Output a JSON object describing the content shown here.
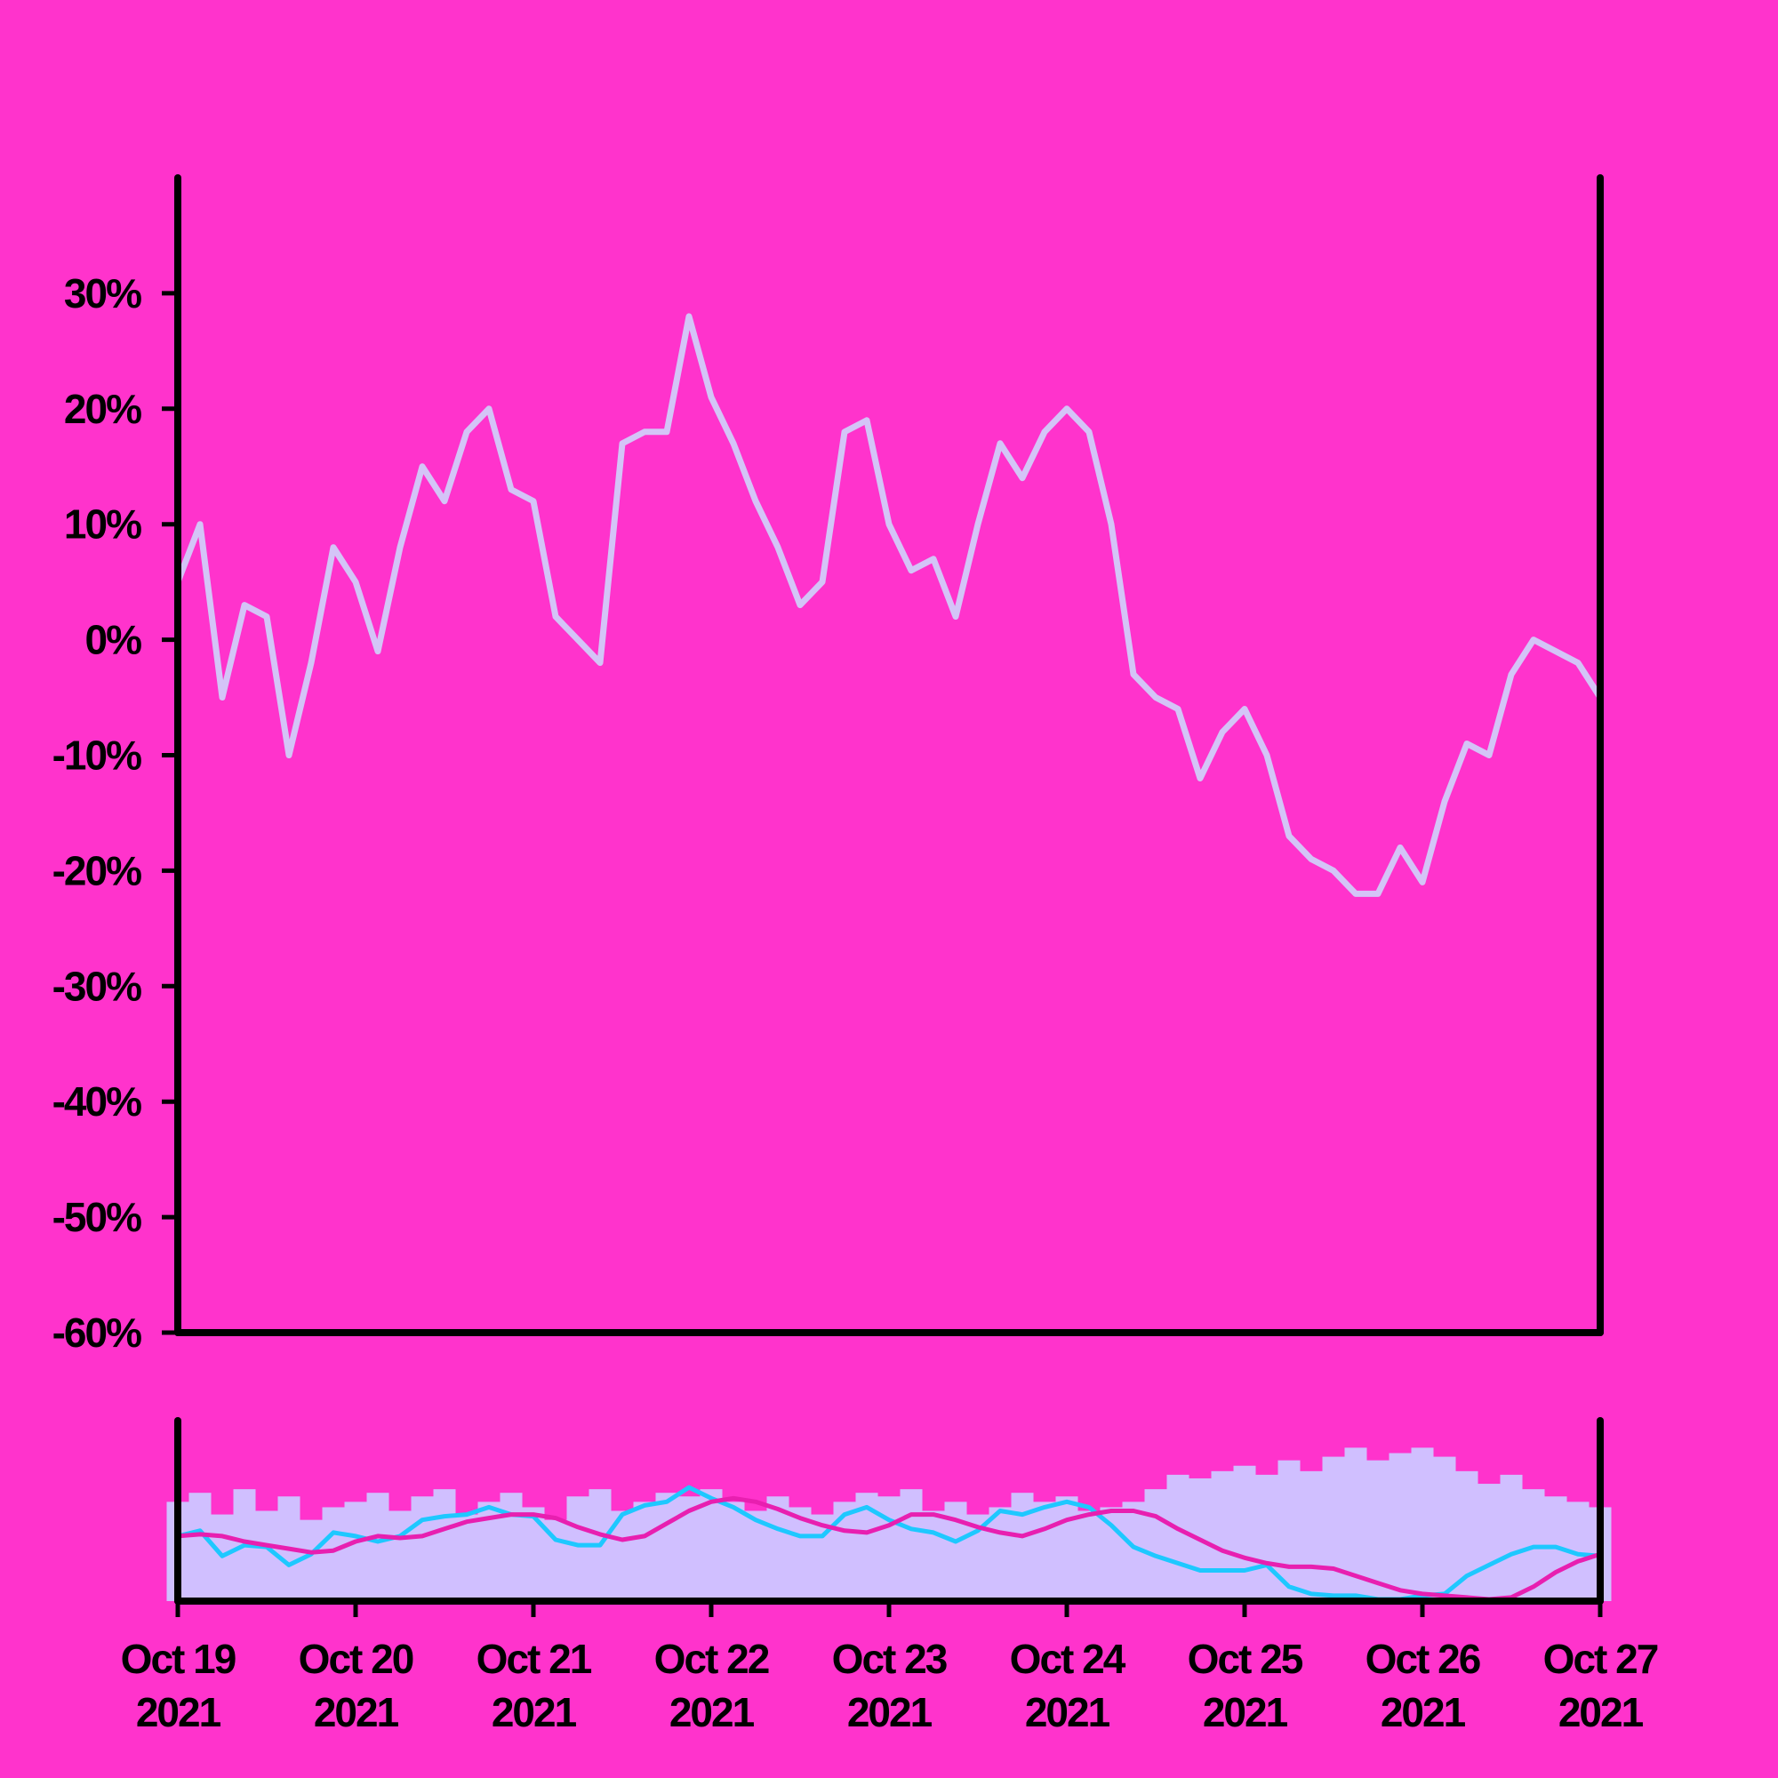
{
  "chart_data": {
    "type": "line",
    "x": [
      "2021-10-19T00:00",
      "2021-10-19T03:00",
      "2021-10-19T06:00",
      "2021-10-19T09:00",
      "2021-10-19T12:00",
      "2021-10-19T15:00",
      "2021-10-19T18:00",
      "2021-10-19T21:00",
      "2021-10-20T00:00",
      "2021-10-20T03:00",
      "2021-10-20T06:00",
      "2021-10-20T09:00",
      "2021-10-20T12:00",
      "2021-10-20T15:00",
      "2021-10-20T18:00",
      "2021-10-20T21:00",
      "2021-10-21T00:00",
      "2021-10-21T03:00",
      "2021-10-21T06:00",
      "2021-10-21T09:00",
      "2021-10-21T12:00",
      "2021-10-21T15:00",
      "2021-10-21T18:00",
      "2021-10-21T21:00",
      "2021-10-22T00:00",
      "2021-10-22T03:00",
      "2021-10-22T06:00",
      "2021-10-22T09:00",
      "2021-10-22T12:00",
      "2021-10-22T15:00",
      "2021-10-22T18:00",
      "2021-10-22T21:00",
      "2021-10-23T00:00",
      "2021-10-23T03:00",
      "2021-10-23T06:00",
      "2021-10-23T09:00",
      "2021-10-23T12:00",
      "2021-10-23T15:00",
      "2021-10-23T18:00",
      "2021-10-23T21:00",
      "2021-10-24T00:00",
      "2021-10-24T03:00",
      "2021-10-24T06:00",
      "2021-10-24T09:00",
      "2021-10-24T12:00",
      "2021-10-24T15:00",
      "2021-10-24T18:00",
      "2021-10-24T21:00",
      "2021-10-25T00:00",
      "2021-10-25T03:00",
      "2021-10-25T06:00",
      "2021-10-25T09:00",
      "2021-10-25T12:00",
      "2021-10-25T15:00",
      "2021-10-25T18:00",
      "2021-10-25T21:00",
      "2021-10-26T00:00",
      "2021-10-26T03:00",
      "2021-10-26T06:00",
      "2021-10-26T09:00",
      "2021-10-26T12:00",
      "2021-10-26T15:00",
      "2021-10-26T18:00",
      "2021-10-26T21:00",
      "2021-10-27T00:00"
    ],
    "values": [
      5,
      10,
      -5,
      3,
      2,
      -10,
      -2,
      8,
      5,
      -1,
      8,
      15,
      12,
      18,
      20,
      13,
      12,
      2,
      0,
      -2,
      17,
      18,
      18,
      28,
      21,
      17,
      12,
      8,
      3,
      5,
      18,
      19,
      10,
      6,
      7,
      2,
      10,
      17,
      14,
      18,
      20,
      18,
      10,
      -3,
      -5,
      -6,
      -12,
      -8,
      -6,
      -10,
      -17,
      -19,
      -20,
      -22,
      -22,
      -18,
      -21,
      -14,
      -9,
      -10,
      -3,
      0,
      -1,
      -2,
      -5
    ],
    "color": "#d4c4f7",
    "background": "#ff33cc",
    "ylim": [
      -60,
      40
    ],
    "yticks": [
      {
        "value": -60,
        "label": "-60%"
      },
      {
        "value": -50,
        "label": "-50%"
      },
      {
        "value": -40,
        "label": "-40%"
      },
      {
        "value": -30,
        "label": "-30%"
      },
      {
        "value": -20,
        "label": "-20%"
      },
      {
        "value": -10,
        "label": "-10%"
      },
      {
        "value": 0,
        "label": "0%"
      },
      {
        "value": 10,
        "label": "10%"
      },
      {
        "value": 20,
        "label": "20%"
      },
      {
        "value": 30,
        "label": "30%"
      }
    ],
    "xlim": [
      "2021-10-19T00:00",
      "2021-10-27T00:00"
    ],
    "xticks": [
      {
        "value": "2021-10-19T00:00",
        "label": "Oct 19 2021"
      },
      {
        "value": "2021-10-20T00:00",
        "label": "Oct 20 2021"
      },
      {
        "value": "2021-10-21T00:00",
        "label": "Oct 21 2021"
      },
      {
        "value": "2021-10-22T00:00",
        "label": "Oct 22 2021"
      },
      {
        "value": "2021-10-23T00:00",
        "label": "Oct 23 2021"
      },
      {
        "value": "2021-10-24T00:00",
        "label": "Oct 24 2021"
      },
      {
        "value": "2021-10-25T00:00",
        "label": "Oct 25 2021"
      },
      {
        "value": "2021-10-26T00:00",
        "label": "Oct 26 2021"
      },
      {
        "value": "2021-10-27T00:00",
        "label": "Oct 27 2021"
      }
    ],
    "volume": {
      "color": "#d0bfff",
      "ylim": [
        0,
        100
      ],
      "values": [
        55,
        60,
        48,
        62,
        50,
        58,
        45,
        52,
        55,
        60,
        50,
        58,
        62,
        48,
        55,
        60,
        52,
        45,
        58,
        62,
        50,
        55,
        60,
        58,
        62,
        55,
        50,
        58,
        52,
        48,
        55,
        60,
        58,
        62,
        50,
        55,
        48,
        52,
        60,
        55,
        58,
        50,
        52,
        55,
        62,
        70,
        68,
        72,
        75,
        70,
        78,
        72,
        80,
        85,
        78,
        82,
        85,
        80,
        72,
        65,
        70,
        62,
        58,
        55,
        52
      ]
    },
    "moving_averages": [
      {
        "color": "#1ec8ff",
        "values": [
          36,
          39,
          25,
          31,
          30,
          20,
          26,
          38,
          36,
          33,
          36,
          45,
          47,
          48,
          52,
          48,
          47,
          34,
          31,
          31,
          48,
          53,
          55,
          63,
          57,
          52,
          45,
          40,
          36,
          36,
          48,
          52,
          45,
          40,
          38,
          33,
          39,
          50,
          48,
          52,
          55,
          52,
          42,
          30,
          25,
          21,
          17,
          17,
          17,
          20,
          8,
          4,
          3,
          3,
          1,
          1,
          3,
          4,
          14,
          20,
          26,
          30,
          30,
          26,
          25
        ]
      },
      {
        "color": "#e81fb0",
        "values": [
          36,
          37,
          36,
          33,
          31,
          29,
          27,
          28,
          33,
          36,
          35,
          36,
          40,
          44,
          46,
          48,
          48,
          46,
          41,
          37,
          34,
          36,
          43,
          50,
          55,
          57,
          55,
          51,
          46,
          42,
          39,
          38,
          42,
          48,
          48,
          45,
          41,
          38,
          36,
          40,
          45,
          48,
          50,
          50,
          47,
          40,
          34,
          28,
          24,
          21,
          19,
          19,
          18,
          14,
          10,
          6,
          4,
          3,
          2,
          1,
          2,
          8,
          16,
          22,
          26
        ]
      }
    ]
  }
}
